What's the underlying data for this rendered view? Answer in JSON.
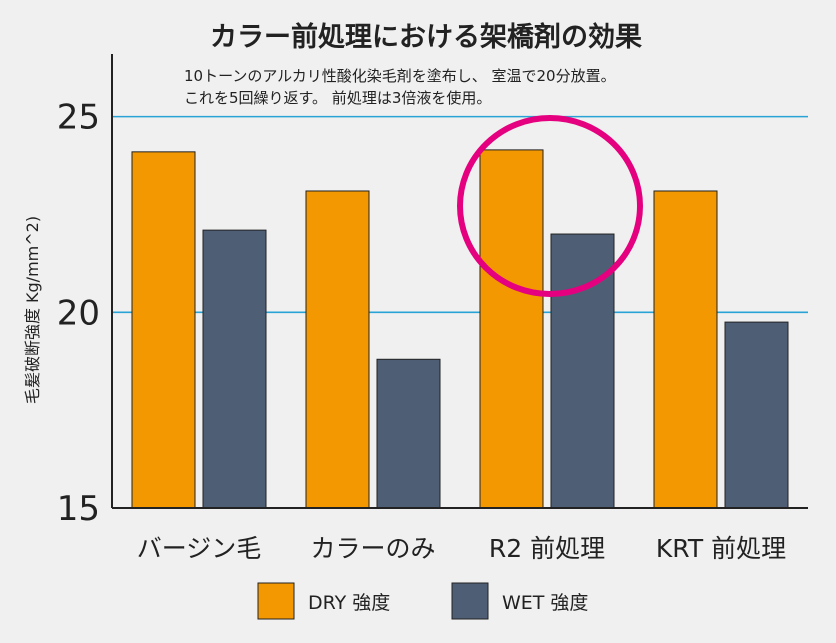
{
  "chart_data": {
    "type": "bar",
    "title": "カラー前処理における架橋剤の効果",
    "annotation_lines": [
      "10トーンのアルカリ性酸化染毛剤を塗布し、 室温で20分放置。",
      "これを5回繰り返す。 前処理は3倍液を使用。"
    ],
    "ylabel": "毛髪破断強度 Kg/mm^2)",
    "xlabel": "",
    "ylim": [
      15,
      26.6
    ],
    "yticks": [
      15,
      20,
      25
    ],
    "grid_lines": [
      20,
      25
    ],
    "categories": [
      "バージン毛",
      "カラーのみ",
      "R2 前処理",
      "KRT 前処理"
    ],
    "series": [
      {
        "name": "DRY 強度",
        "color": "#f39800",
        "values": [
          24.1,
          23.1,
          24.15,
          23.1
        ]
      },
      {
        "name": "WET 強度",
        "color": "#4e5f75",
        "values": [
          22.1,
          18.8,
          22.0,
          19.75
        ]
      }
    ],
    "highlight_category": "R2 前処理",
    "highlight_color": "#e4007f",
    "grid_color": "#29a3d6",
    "legend_position": "bottom"
  }
}
